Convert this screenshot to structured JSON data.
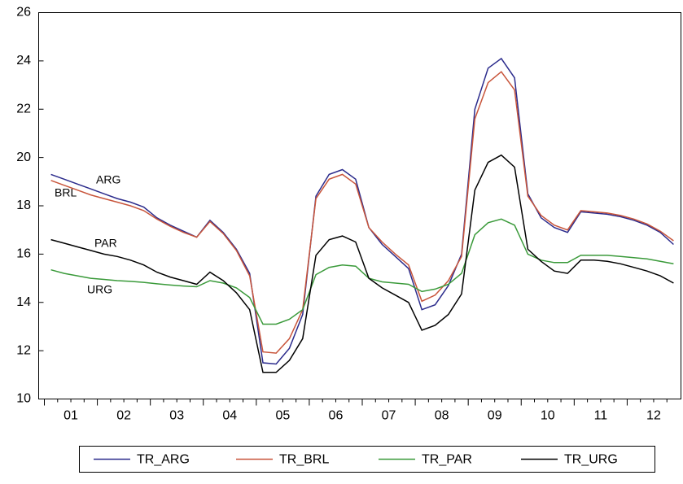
{
  "chart_data": {
    "type": "line",
    "categories": [
      null,
      "01",
      null,
      null,
      null,
      "02",
      null,
      null,
      null,
      "03",
      null,
      null,
      null,
      "04",
      null,
      null,
      null,
      "05",
      null,
      null,
      null,
      "06",
      null,
      null,
      null,
      "07",
      null,
      null,
      null,
      "08",
      null,
      null,
      null,
      "09",
      null,
      null,
      null,
      "10",
      null,
      null,
      null,
      "11",
      null,
      null,
      null,
      "12",
      null,
      null
    ],
    "series": [
      {
        "name": "TR_ARG",
        "color": "#2b2b8c",
        "values": [
          19.3,
          19.1,
          18.9,
          18.7,
          18.5,
          18.3,
          18.15,
          17.95,
          17.5,
          17.2,
          16.95,
          16.7,
          17.4,
          16.9,
          16.2,
          15.2,
          11.5,
          11.45,
          12.1,
          13.5,
          18.4,
          19.3,
          19.5,
          19.1,
          17.1,
          16.4,
          15.9,
          15.4,
          13.7,
          13.9,
          14.7,
          16.0,
          22.0,
          23.7,
          24.1,
          23.3,
          18.5,
          17.5,
          17.1,
          16.9,
          17.75,
          17.7,
          17.65,
          17.55,
          17.4,
          17.2,
          16.9,
          16.4
        ]
      },
      {
        "name": "TR_BRL",
        "color": "#c8553b",
        "values": [
          19.05,
          18.85,
          18.65,
          18.45,
          18.3,
          18.15,
          18.0,
          17.8,
          17.45,
          17.15,
          16.9,
          16.7,
          17.35,
          16.85,
          16.15,
          15.1,
          11.95,
          11.9,
          12.5,
          13.7,
          18.3,
          19.1,
          19.3,
          18.9,
          17.1,
          16.5,
          16.0,
          15.55,
          14.05,
          14.3,
          14.9,
          15.9,
          21.6,
          23.1,
          23.55,
          22.8,
          18.4,
          17.6,
          17.2,
          17.0,
          17.8,
          17.75,
          17.7,
          17.6,
          17.45,
          17.25,
          16.95,
          16.55
        ]
      },
      {
        "name": "TR_PAR",
        "color": "#3a9a3a",
        "values": [
          15.35,
          15.2,
          15.1,
          15.0,
          14.95,
          14.9,
          14.87,
          14.83,
          14.77,
          14.72,
          14.68,
          14.65,
          14.9,
          14.8,
          14.6,
          14.2,
          13.1,
          13.1,
          13.3,
          13.7,
          15.15,
          15.45,
          15.55,
          15.5,
          15.0,
          14.85,
          14.8,
          14.75,
          14.45,
          14.55,
          14.75,
          15.2,
          16.8,
          17.3,
          17.45,
          17.2,
          16.0,
          15.75,
          15.65,
          15.65,
          15.95,
          15.95,
          15.95,
          15.9,
          15.85,
          15.8,
          15.7,
          15.6
        ]
      },
      {
        "name": "TR_URG",
        "color": "#000000",
        "values": [
          16.6,
          16.45,
          16.3,
          16.15,
          16.0,
          15.9,
          15.75,
          15.55,
          15.25,
          15.05,
          14.9,
          14.75,
          15.25,
          14.9,
          14.4,
          13.7,
          11.1,
          11.1,
          11.6,
          12.5,
          15.95,
          16.6,
          16.75,
          16.5,
          15.0,
          14.6,
          14.3,
          14.0,
          12.85,
          13.05,
          13.5,
          14.35,
          18.65,
          19.8,
          20.1,
          19.6,
          16.2,
          15.7,
          15.3,
          15.2,
          15.75,
          15.75,
          15.7,
          15.6,
          15.45,
          15.3,
          15.1,
          14.8
        ]
      }
    ],
    "annotations": [
      "ARG",
      "BRL",
      "PAR",
      "URG"
    ],
    "ylim": [
      10,
      26
    ],
    "yticks": [
      10,
      12,
      14,
      16,
      18,
      20,
      22,
      24,
      26
    ],
    "grid": false,
    "legend": "bottom"
  }
}
